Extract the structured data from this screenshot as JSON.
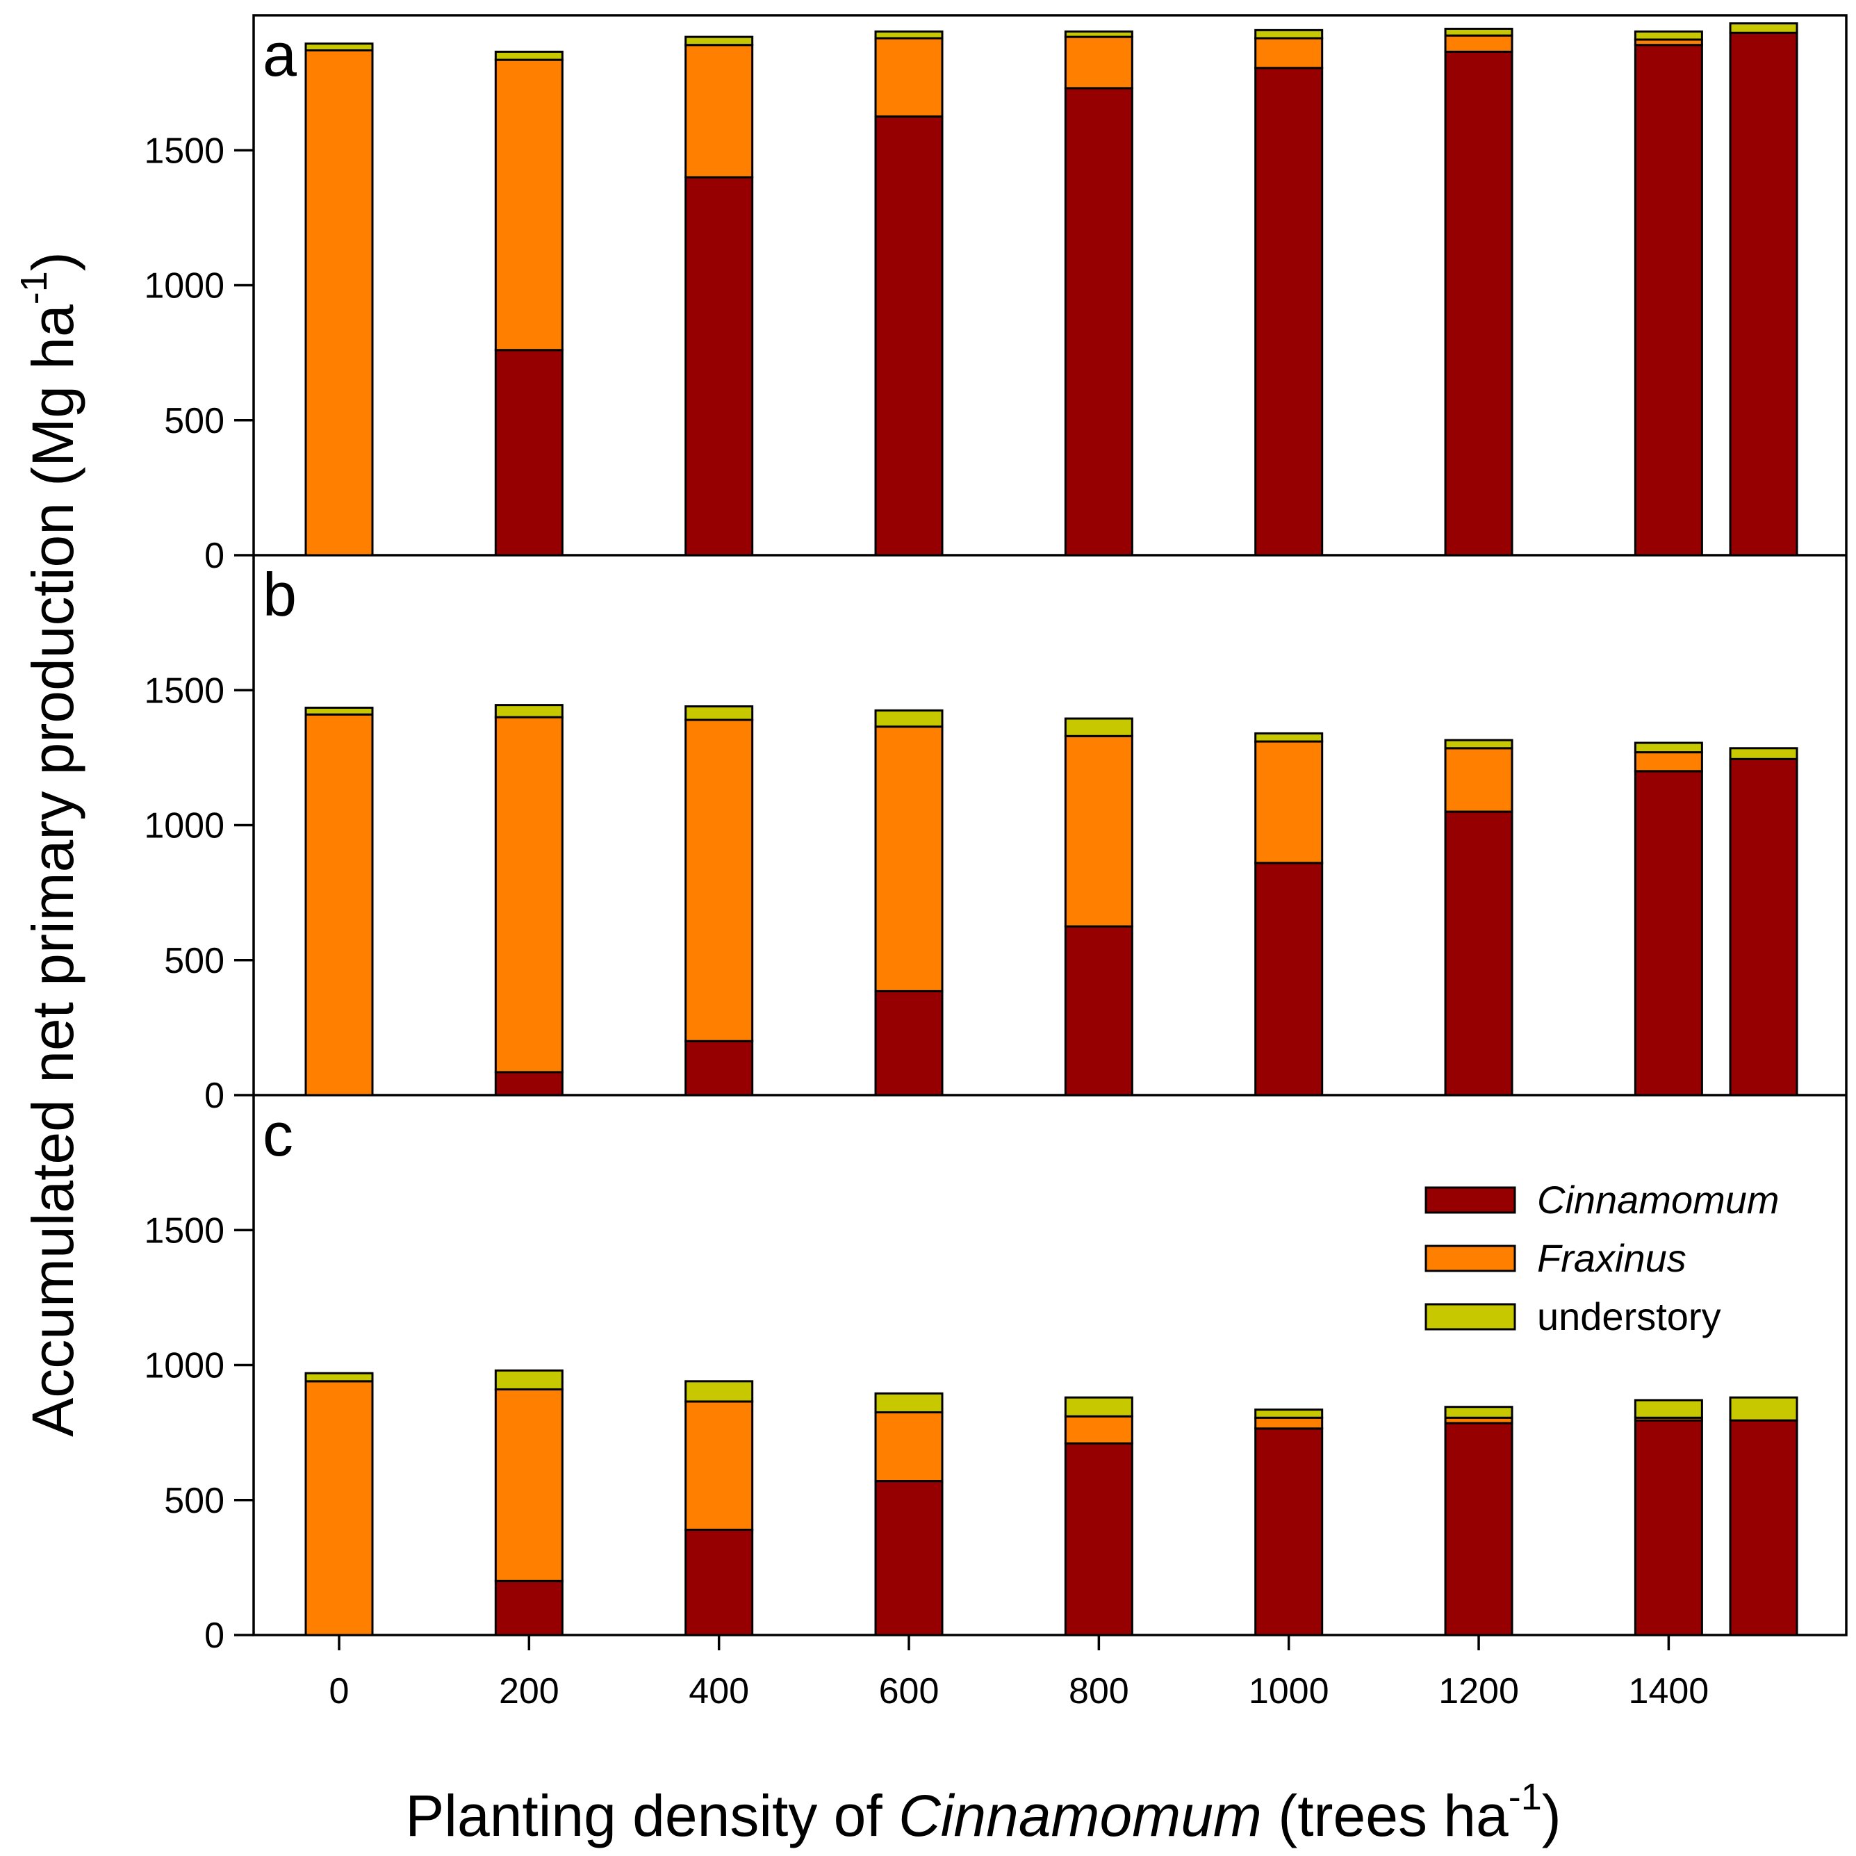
{
  "chart_data": {
    "type": "bar",
    "stacked": true,
    "x_categories": [
      0,
      200,
      400,
      600,
      800,
      1000,
      1200,
      1400,
      1500
    ],
    "x_tick_labels": [
      "0",
      "200",
      "400",
      "600",
      "800",
      "1000",
      "1200",
      "1400"
    ],
    "y_tick_labels": [
      "0",
      "500",
      "1000",
      "1500"
    ],
    "ylim": [
      0,
      2000
    ],
    "xlabel": {
      "before": "Planting density of ",
      "italic": "Cinnamomum",
      "after": " (trees ha",
      "superscript": "-1",
      "close": ")"
    },
    "ylabel": {
      "text": "Accumulated net primary production (Mg ha",
      "superscript": "-1",
      "close": ")"
    },
    "grid": false,
    "legend": {
      "placement": "top-right of panel c",
      "entries": [
        {
          "label": "Cinnamomum",
          "italic": true,
          "color": "#960000"
        },
        {
          "label": "Fraxinus",
          "italic": true,
          "color": "#ff8000"
        },
        {
          "label": "understory",
          "italic": false,
          "color": "#c8c800"
        }
      ]
    },
    "series_names": [
      "Cinnamomum",
      "Fraxinus",
      "understory"
    ],
    "series_colors": [
      "#960000",
      "#ff8000",
      "#c8c800"
    ],
    "panels": [
      {
        "label": "a",
        "Cinnamomum": [
          0,
          760,
          1400,
          1625,
          1730,
          1805,
          1865,
          1890,
          1935
        ],
        "Fraxinus": [
          1870,
          1075,
          490,
          290,
          190,
          110,
          60,
          20,
          0
        ],
        "understory": [
          25,
          30,
          30,
          25,
          20,
          30,
          25,
          30,
          35
        ]
      },
      {
        "label": "b",
        "Cinnamomum": [
          0,
          85,
          200,
          385,
          625,
          860,
          1050,
          1200,
          1245
        ],
        "Fraxinus": [
          1410,
          1315,
          1190,
          980,
          705,
          450,
          235,
          70,
          0
        ],
        "understory": [
          25,
          45,
          50,
          60,
          65,
          30,
          30,
          35,
          40
        ]
      },
      {
        "label": "c",
        "Cinnamomum": [
          0,
          200,
          390,
          570,
          710,
          765,
          785,
          795,
          795
        ],
        "Fraxinus": [
          940,
          710,
          475,
          255,
          100,
          40,
          20,
          10,
          0
        ],
        "understory": [
          30,
          70,
          75,
          70,
          70,
          30,
          40,
          65,
          85
        ]
      }
    ]
  }
}
